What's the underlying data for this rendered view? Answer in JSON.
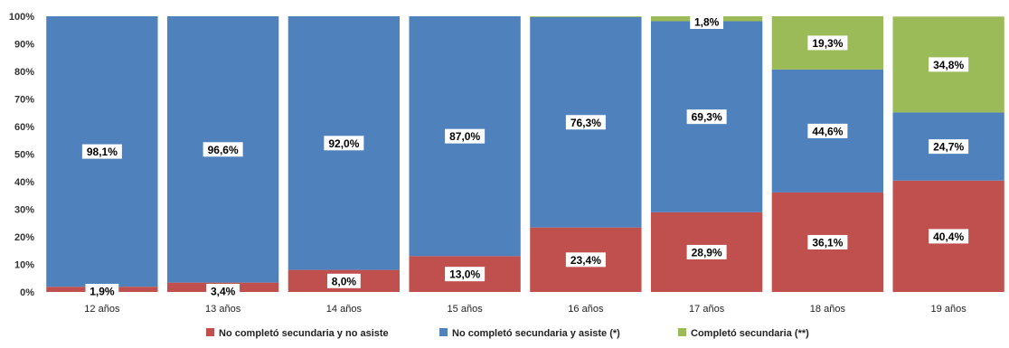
{
  "chart_data": {
    "type": "bar",
    "stacked": true,
    "percent": true,
    "title": "",
    "xlabel": "",
    "ylabel": "",
    "ylim": [
      0,
      100
    ],
    "yticks": [
      "0%",
      "10%",
      "20%",
      "30%",
      "40%",
      "50%",
      "60%",
      "70%",
      "80%",
      "90%",
      "100%"
    ],
    "grid": false,
    "legend_position": "bottom",
    "categories": [
      "12 años",
      "13 años",
      "14 años",
      "15 años",
      "16 años",
      "17 años",
      "18 años",
      "19 años"
    ],
    "series": [
      {
        "name": "No completó secundaria y no asiste",
        "color": "#c0504d",
        "values": [
          1.9,
          3.4,
          8.0,
          13.0,
          23.4,
          28.9,
          36.1,
          40.4
        ],
        "labels": [
          "1,9%",
          "3,4%",
          "8,0%",
          "13,0%",
          "23,4%",
          "28,9%",
          "36,1%",
          "40,4%"
        ]
      },
      {
        "name": "No completó secundaria y asiste (*)",
        "color": "#4f81bd",
        "values": [
          98.1,
          96.6,
          92.0,
          87.0,
          76.3,
          69.3,
          44.6,
          24.7
        ],
        "labels": [
          "98,1%",
          "96,6%",
          "92,0%",
          "87,0%",
          "76,3%",
          "69,3%",
          "44,6%",
          "24,7%"
        ]
      },
      {
        "name": "Completó secundaria (**)",
        "color": "#9bbb59",
        "values": [
          0,
          0,
          0,
          0,
          0.3,
          1.8,
          19.3,
          34.8
        ],
        "labels": [
          "",
          "",
          "",
          "",
          "",
          "1,8%",
          "19,3%",
          "34,8%"
        ]
      }
    ]
  }
}
